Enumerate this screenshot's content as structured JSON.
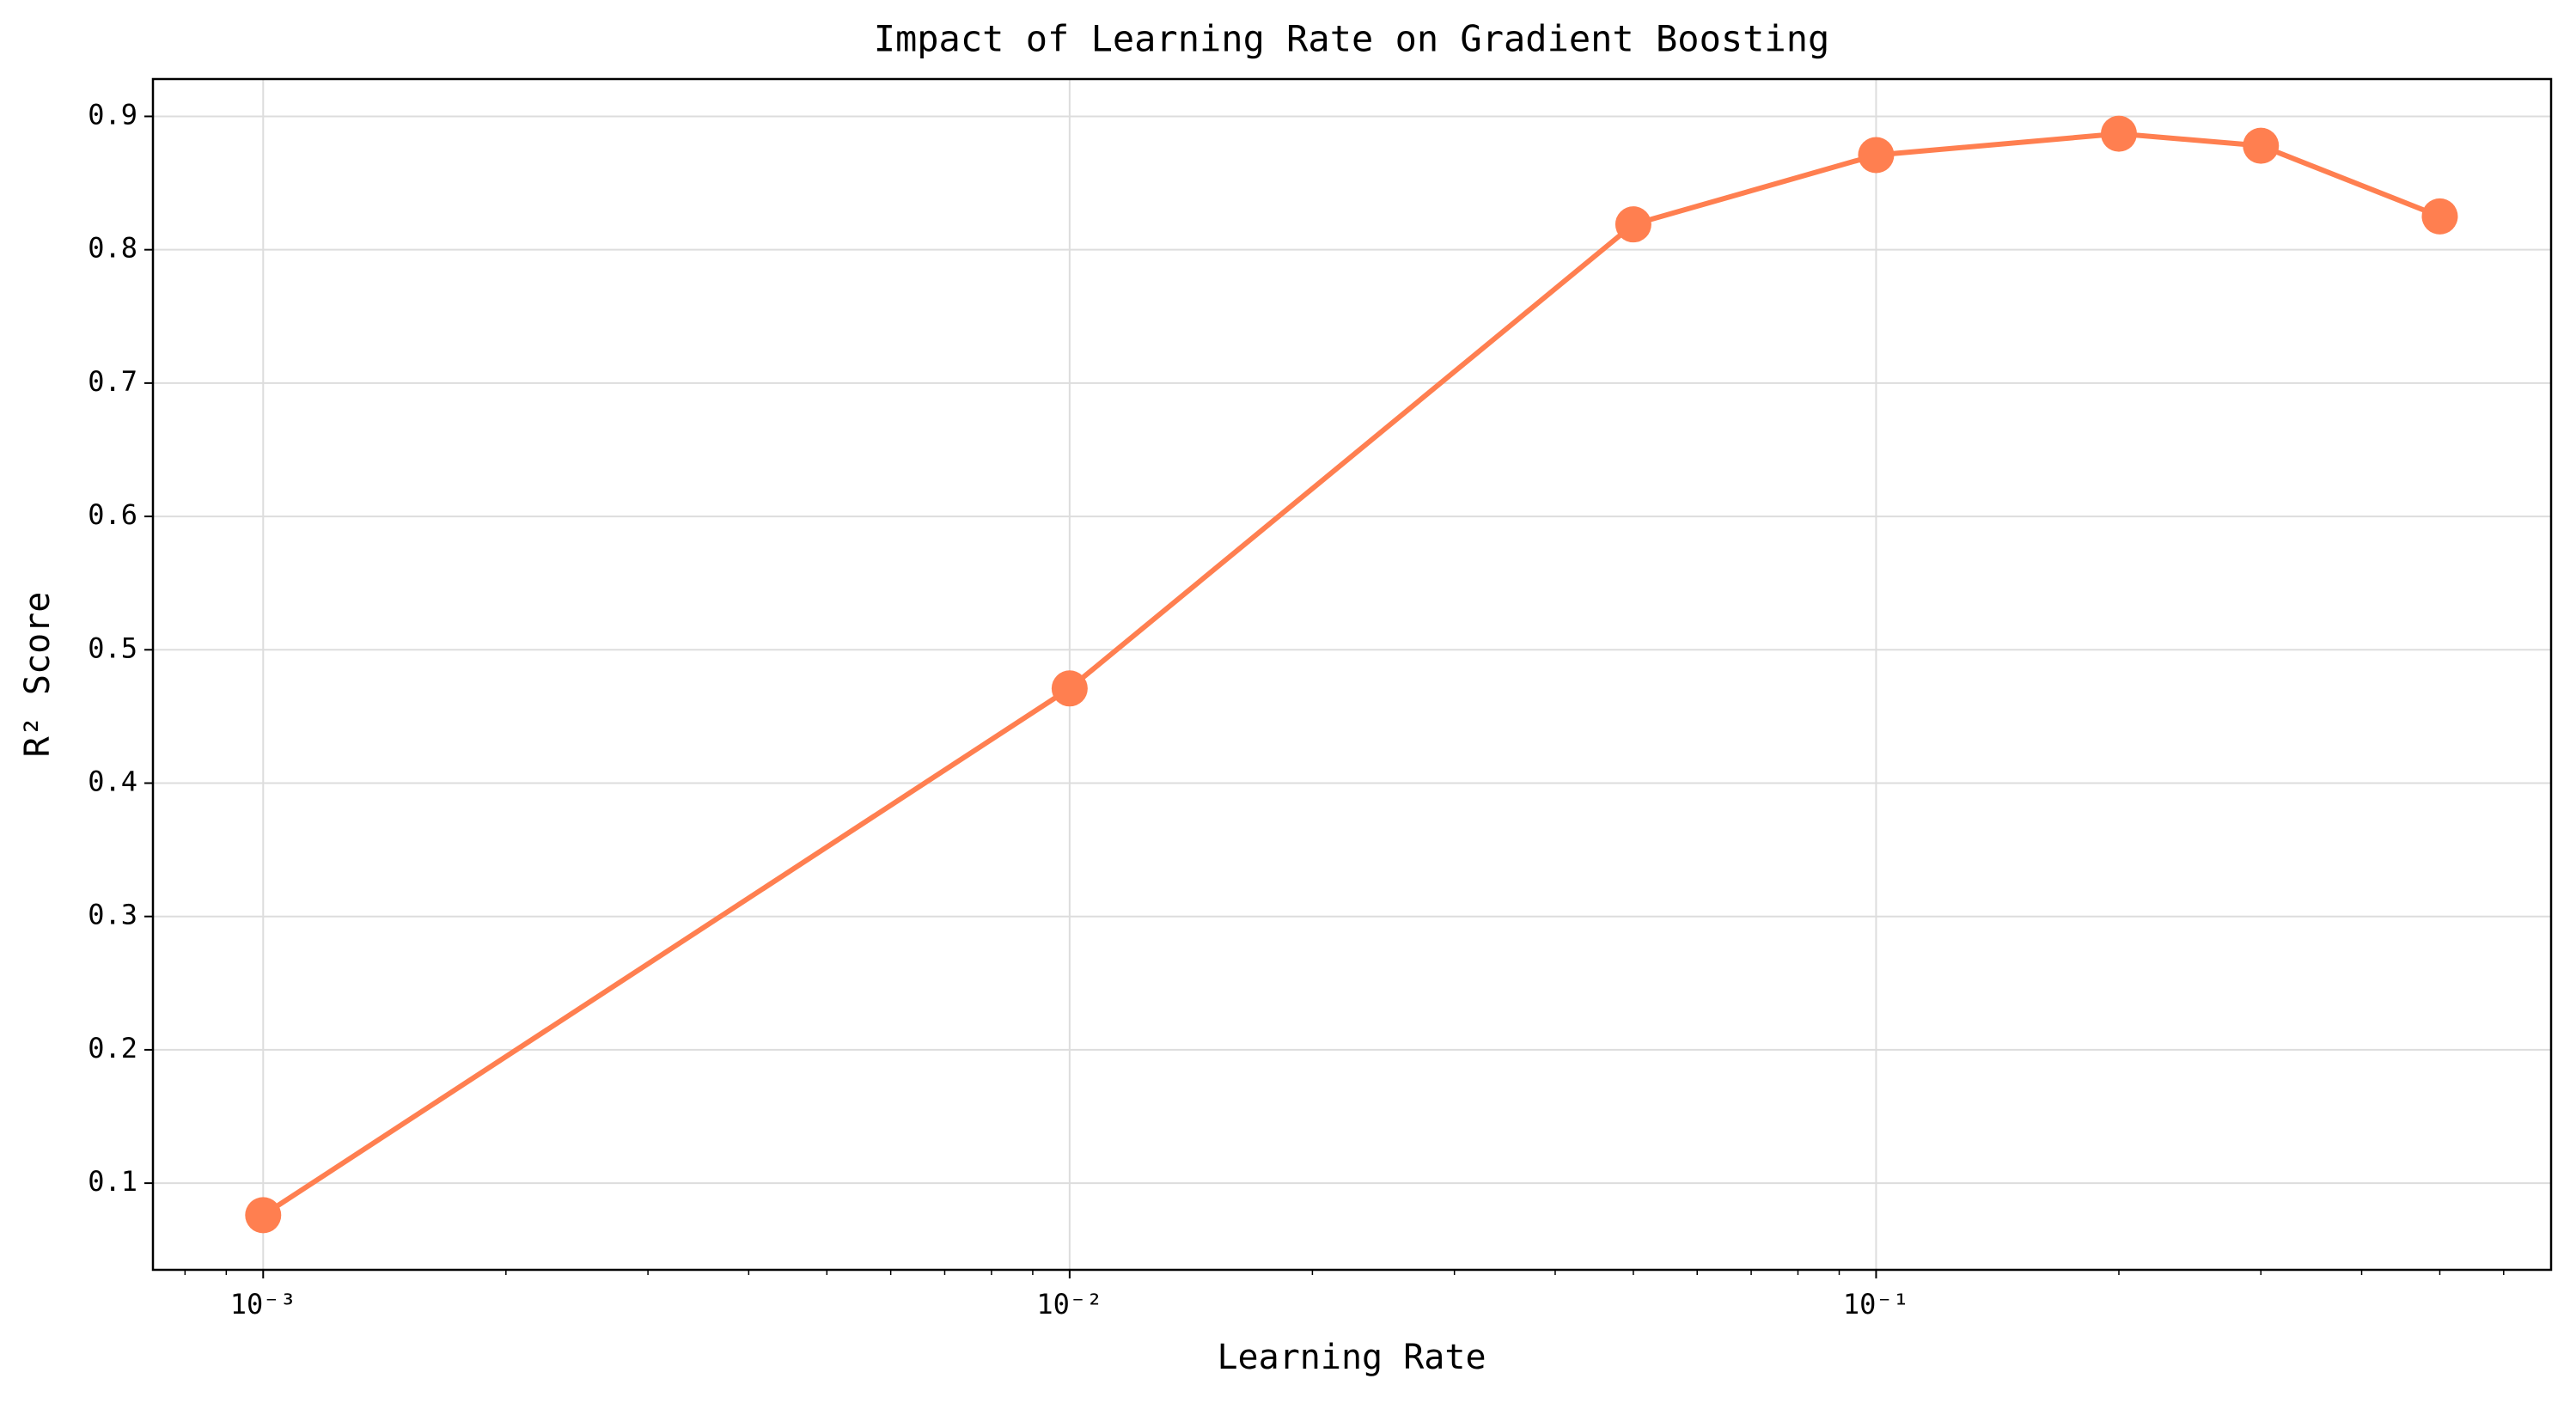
{
  "chart_data": {
    "type": "line",
    "title": "Impact of Learning Rate on Gradient Boosting",
    "x_label": "Learning Rate",
    "y_label": "R² Score",
    "x": [
      0.001,
      0.01,
      0.05,
      0.1,
      0.2,
      0.3,
      0.5
    ],
    "series": [
      {
        "name": "R² Score",
        "color": "#ff7f50",
        "values": [
          0.076,
          0.471,
          0.819,
          0.871,
          0.887,
          0.878,
          0.825
        ]
      }
    ],
    "xscale": "log",
    "xlim": [
      0.00073,
      0.687
    ],
    "ylim": [
      0.035,
      0.928
    ],
    "xticks": [
      {
        "value": 0.001,
        "label": "10⁻³"
      },
      {
        "value": 0.01,
        "label": "10⁻²"
      },
      {
        "value": 0.1,
        "label": "10⁻¹"
      }
    ],
    "xminorticks": [
      0.0008,
      0.0009,
      0.002,
      0.003,
      0.004,
      0.005,
      0.006,
      0.007,
      0.008,
      0.009,
      0.02,
      0.03,
      0.04,
      0.05,
      0.06,
      0.07,
      0.08,
      0.09,
      0.2,
      0.3,
      0.4,
      0.5,
      0.6
    ],
    "yticks": [
      0.1,
      0.2,
      0.3,
      0.4,
      0.5,
      0.6,
      0.7,
      0.8,
      0.9
    ],
    "grid": true
  }
}
